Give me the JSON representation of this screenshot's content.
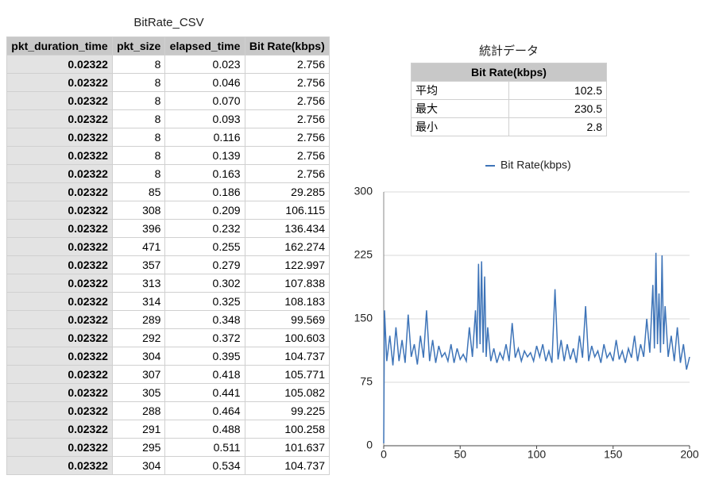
{
  "table": {
    "title": "BitRate_CSV",
    "columns": [
      "pkt_duration_time",
      "pkt_size",
      "elapsed_time",
      "Bit Rate(kbps)"
    ],
    "rows": [
      [
        "0.02322",
        "8",
        "0.023",
        "2.756"
      ],
      [
        "0.02322",
        "8",
        "0.046",
        "2.756"
      ],
      [
        "0.02322",
        "8",
        "0.070",
        "2.756"
      ],
      [
        "0.02322",
        "8",
        "0.093",
        "2.756"
      ],
      [
        "0.02322",
        "8",
        "0.116",
        "2.756"
      ],
      [
        "0.02322",
        "8",
        "0.139",
        "2.756"
      ],
      [
        "0.02322",
        "8",
        "0.163",
        "2.756"
      ],
      [
        "0.02322",
        "85",
        "0.186",
        "29.285"
      ],
      [
        "0.02322",
        "308",
        "0.209",
        "106.115"
      ],
      [
        "0.02322",
        "396",
        "0.232",
        "136.434"
      ],
      [
        "0.02322",
        "471",
        "0.255",
        "162.274"
      ],
      [
        "0.02322",
        "357",
        "0.279",
        "122.997"
      ],
      [
        "0.02322",
        "313",
        "0.302",
        "107.838"
      ],
      [
        "0.02322",
        "314",
        "0.325",
        "108.183"
      ],
      [
        "0.02322",
        "289",
        "0.348",
        "99.569"
      ],
      [
        "0.02322",
        "292",
        "0.372",
        "100.603"
      ],
      [
        "0.02322",
        "304",
        "0.395",
        "104.737"
      ],
      [
        "0.02322",
        "307",
        "0.418",
        "105.771"
      ],
      [
        "0.02322",
        "305",
        "0.441",
        "105.082"
      ],
      [
        "0.02322",
        "288",
        "0.464",
        "99.225"
      ],
      [
        "0.02322",
        "291",
        "0.488",
        "100.258"
      ],
      [
        "0.02322",
        "295",
        "0.511",
        "101.637"
      ],
      [
        "0.02322",
        "304",
        "0.534",
        "104.737"
      ]
    ]
  },
  "stats": {
    "title": "統計データ",
    "header": "Bit Rate(kbps)",
    "rows": [
      [
        "平均",
        "102.5"
      ],
      [
        "最大",
        "230.5"
      ],
      [
        "最小",
        "2.8"
      ]
    ]
  },
  "chart_data": {
    "type": "line",
    "x": [
      0,
      0.5,
      2,
      4,
      6,
      8,
      10,
      12,
      14,
      16,
      18,
      20,
      22,
      24,
      26,
      28,
      30,
      32,
      34,
      36,
      38,
      40,
      42,
      44,
      46,
      48,
      50,
      52,
      54,
      56,
      58,
      60,
      61,
      62,
      63,
      64,
      65,
      66,
      67,
      68,
      70,
      72,
      74,
      76,
      78,
      80,
      82,
      84,
      86,
      88,
      90,
      92,
      94,
      96,
      98,
      100,
      102,
      104,
      106,
      108,
      110,
      112,
      114,
      116,
      118,
      120,
      122,
      124,
      126,
      128,
      130,
      132,
      134,
      136,
      138,
      140,
      142,
      144,
      146,
      148,
      150,
      152,
      154,
      156,
      158,
      160,
      162,
      164,
      166,
      168,
      170,
      172,
      174,
      176,
      177,
      178,
      179,
      180,
      181,
      182,
      183,
      184,
      186,
      188,
      190,
      192,
      194,
      196,
      198,
      200
    ],
    "series": [
      {
        "name": "Bit Rate(kbps)",
        "color": "#3e74b8",
        "values": [
          2.8,
          160,
          100,
          130,
          95,
          140,
          100,
          125,
          98,
          155,
          105,
          120,
          96,
          130,
          104,
          160,
          100,
          125,
          98,
          118,
          105,
          110,
          100,
          120,
          98,
          115,
          102,
          108,
          100,
          140,
          105,
          160,
          115,
          215,
          120,
          218,
          110,
          200,
          105,
          140,
          100,
          115,
          98,
          110,
          102,
          120,
          100,
          145,
          104,
          115,
          100,
          112,
          105,
          110,
          100,
          118,
          105,
          120,
          100,
          112,
          98,
          185,
          102,
          125,
          100,
          120,
          102,
          115,
          98,
          130,
          104,
          165,
          100,
          118,
          105,
          112,
          98,
          120,
          104,
          110,
          100,
          125,
          102,
          112,
          98,
          115,
          104,
          130,
          100,
          120,
          105,
          150,
          110,
          190,
          115,
          228,
          120,
          180,
          110,
          225,
          120,
          165,
          105,
          130,
          100,
          140,
          98,
          120,
          90,
          105
        ]
      }
    ],
    "xlim": [
      0,
      200
    ],
    "xticks": [
      0,
      50,
      100,
      150,
      200
    ],
    "ylim": [
      0,
      300
    ],
    "yticks": [
      0,
      75,
      150,
      225,
      300
    ],
    "grid": true,
    "legend": "top"
  }
}
